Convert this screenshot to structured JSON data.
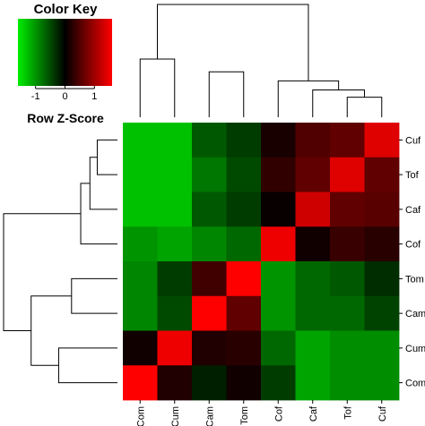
{
  "chart_data": {
    "type": "heatmap",
    "color_key": {
      "title": "Color Key",
      "xlabel": "Row Z-Score",
      "ticks": [
        -1,
        0,
        1
      ],
      "range": [
        -1.6,
        1.6
      ],
      "colors": {
        "low": "#00ee00",
        "mid": "#000000",
        "high": "#ff0000"
      }
    },
    "column_labels": [
      "Com",
      "Cum",
      "Cam",
      "Tom",
      "Cof",
      "Caf",
      "Tof",
      "Cuf"
    ],
    "row_labels": [
      "Cuf",
      "Tof",
      "Caf",
      "Cof",
      "Tom",
      "Cam",
      "Cum",
      "Com"
    ],
    "values": [
      [
        -1.3,
        -1.3,
        -0.6,
        -0.4,
        0.15,
        0.5,
        0.6,
        1.4
      ],
      [
        -1.3,
        -1.3,
        -0.8,
        -0.5,
        0.3,
        0.6,
        1.4,
        0.6
      ],
      [
        -1.3,
        -1.3,
        -0.6,
        -0.4,
        0.05,
        1.3,
        0.6,
        0.55
      ],
      [
        -1.0,
        -1.1,
        -0.9,
        -0.7,
        1.5,
        0.1,
        0.35,
        0.25
      ],
      [
        -0.9,
        -0.4,
        0.4,
        1.6,
        -1.0,
        -0.7,
        -0.6,
        -0.3
      ],
      [
        -0.9,
        -0.5,
        1.6,
        0.6,
        -1.0,
        -0.7,
        -0.7,
        -0.45
      ],
      [
        0.1,
        1.5,
        0.2,
        0.25,
        -0.7,
        -1.1,
        -0.95,
        -0.95
      ],
      [
        1.6,
        0.2,
        -0.2,
        0.1,
        -0.4,
        -1.1,
        -0.95,
        -0.95
      ]
    ],
    "column_dendrogram": [
      [
        7,
        8,
        0.55
      ],
      [
        6,
        9,
        0.75
      ],
      [
        5,
        10,
        1.0
      ],
      [
        3,
        4,
        1.25
      ],
      [
        1,
        2,
        1.6
      ],
      [
        14,
        12,
        2.35
      ],
      [
        13,
        11,
        3.1
      ]
    ],
    "row_dendrogram": [
      [
        1,
        2,
        0.55
      ],
      [
        3,
        9,
        0.75
      ],
      [
        4,
        10,
        1.0
      ],
      [
        5,
        6,
        1.25
      ],
      [
        7,
        8,
        1.6
      ],
      [
        13,
        12,
        2.35
      ],
      [
        11,
        14,
        3.1
      ]
    ]
  }
}
